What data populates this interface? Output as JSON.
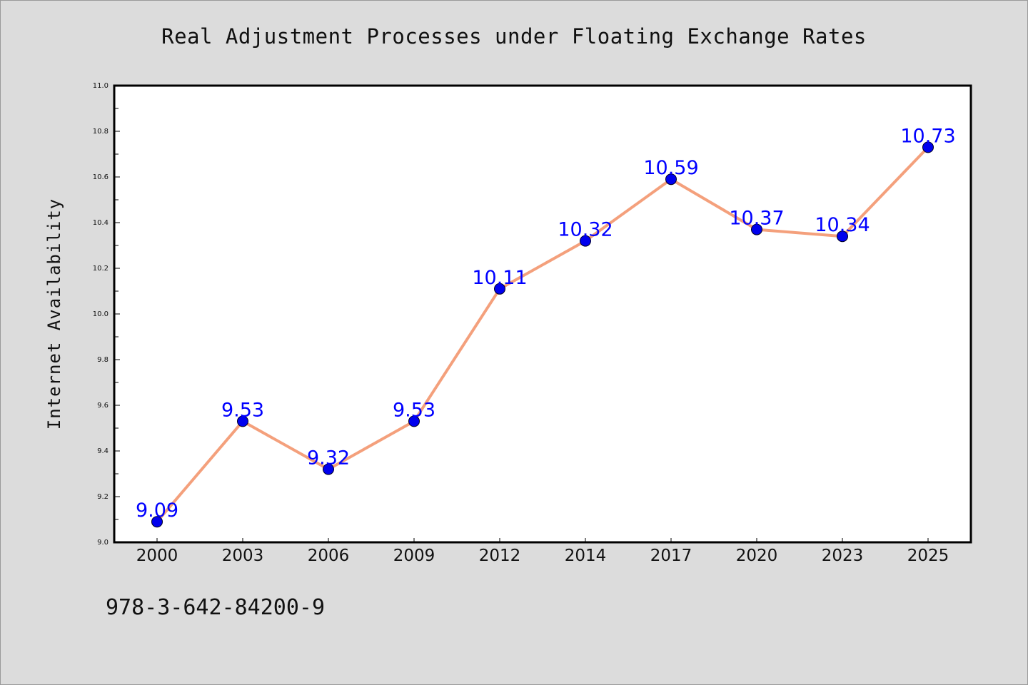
{
  "footer": {
    "isbn": "978-3-642-84200-9"
  },
  "chart_data": {
    "type": "line",
    "title": "Real Adjustment Processes under Floating Exchange Rates",
    "xlabel": "",
    "ylabel": "Internet Availability",
    "categories": [
      "2000",
      "2003",
      "2006",
      "2009",
      "2012",
      "2014",
      "2017",
      "2020",
      "2023",
      "2025"
    ],
    "series": [
      {
        "values": [
          9.09,
          9.53,
          9.32,
          9.53,
          10.11,
          10.32,
          10.59,
          10.37,
          10.34,
          10.73
        ],
        "value_labels": [
          "9.09",
          "9.53",
          "9.32",
          "9.53",
          "10.11",
          "10.32",
          "10.59",
          "10.37",
          "10.34",
          "10.73"
        ],
        "line_color": "#f4a07c",
        "marker_color": "#0000ee",
        "label_color": "#0000ff"
      }
    ],
    "ylim": [
      9.0,
      11.0
    ],
    "y_ticks": [
      "9.0",
      "9.2",
      "9.4",
      "9.6",
      "9.8",
      "10.0",
      "10.2",
      "10.4",
      "10.6",
      "10.8",
      "11.0"
    ],
    "y_tick_values": [
      9.0,
      9.2,
      9.4,
      9.6,
      9.8,
      10.0,
      10.2,
      10.4,
      10.6,
      10.8,
      11.0
    ],
    "grid": false,
    "legend": "none",
    "background": "#dcdcdc",
    "plot_background": "#ffffff"
  }
}
